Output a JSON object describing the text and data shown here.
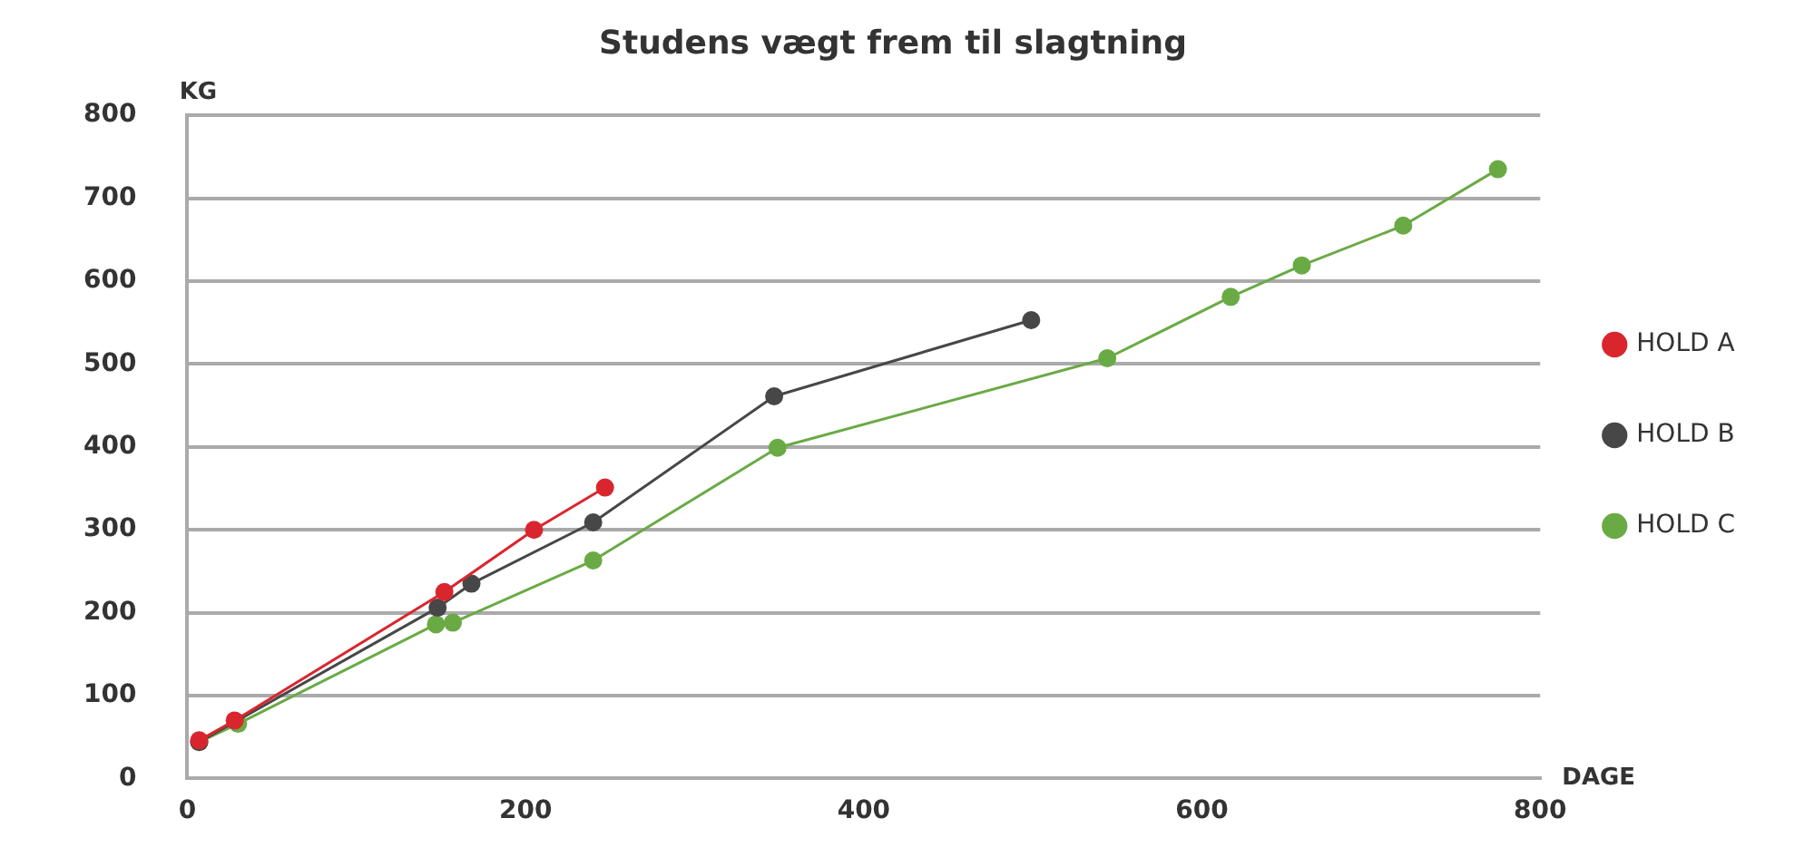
{
  "chart_data": {
    "type": "line",
    "title": "Studens vægt frem til slagtning",
    "xlabel": "DAGE",
    "ylabel": "KG",
    "xlim": [
      0,
      800
    ],
    "xticks": [
      0,
      200,
      400,
      600,
      800
    ],
    "ylim": [
      0,
      800
    ],
    "yticks": [
      0,
      100,
      200,
      300,
      400,
      500,
      600,
      700,
      800
    ],
    "grid": "y",
    "legend": "right",
    "marker": "circle",
    "line_style": "solid",
    "series": [
      {
        "name": "HOLD A",
        "color": "#d9262e",
        "x": [
          7,
          28,
          152,
          205,
          247
        ],
        "values": [
          46,
          70,
          225,
          300,
          351
        ]
      },
      {
        "name": "HOLD B",
        "color": "#474747",
        "x": [
          7,
          148,
          168,
          240,
          347,
          499
        ],
        "values": [
          44,
          206,
          235,
          309,
          461,
          553
        ]
      },
      {
        "name": "HOLD C",
        "color": "#6aaa45",
        "x": [
          7,
          30,
          147,
          157,
          240,
          349,
          544,
          617,
          659,
          719,
          775
        ],
        "values": [
          44,
          66,
          186,
          188,
          263,
          399,
          507,
          581,
          619,
          667,
          735
        ]
      }
    ]
  }
}
